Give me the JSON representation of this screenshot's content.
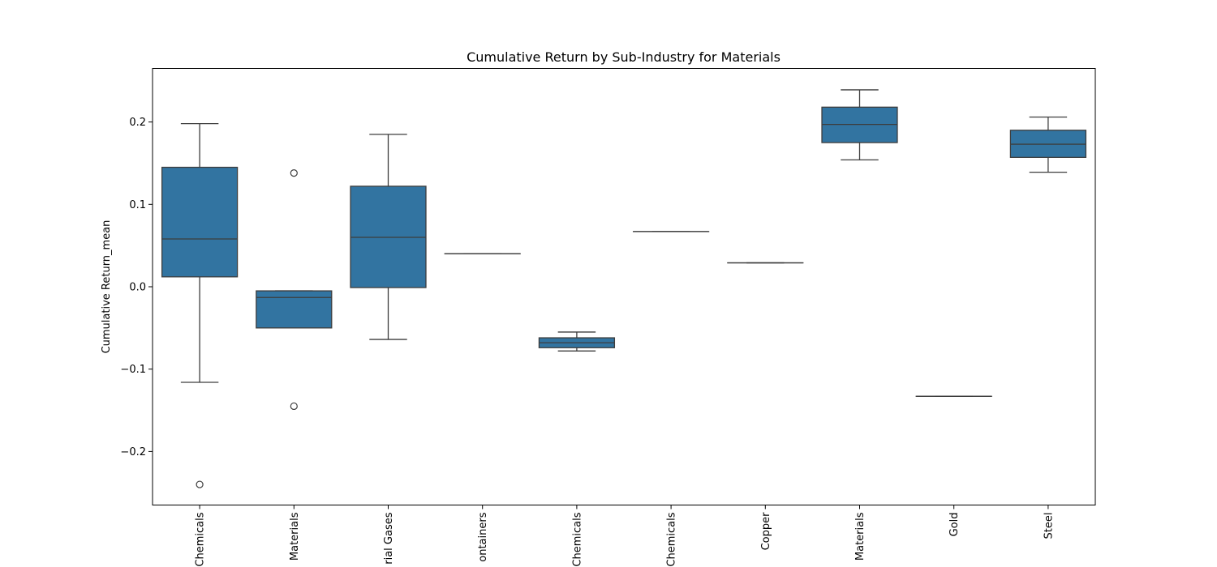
{
  "chart_data": {
    "type": "box",
    "title": "Cumulative Return by Sub-Industry for Materials",
    "xlabel": "",
    "ylabel": "Cumulative Return_mean",
    "ylim": [
      -0.265,
      0.265
    ],
    "yticks": [
      -0.2,
      -0.1,
      0.0,
      0.1,
      0.2
    ],
    "ytick_labels": [
      "−0.2",
      "−0.1",
      "0.0",
      "0.1",
      "0.2"
    ],
    "box_color": "#3274a1",
    "edge_color": "#3d3d3d",
    "categories": [
      {
        "label": "Chemicals",
        "whisker_low": -0.116,
        "q1": 0.012,
        "median": 0.058,
        "q3": 0.145,
        "whisker_high": 0.198,
        "outliers": [
          -0.24
        ]
      },
      {
        "label": "Materials",
        "whisker_low": -0.05,
        "q1": -0.05,
        "median": -0.013,
        "q3": -0.005,
        "whisker_high": -0.005,
        "outliers": [
          0.138,
          -0.145
        ]
      },
      {
        "label": "rial Gases",
        "whisker_low": -0.064,
        "q1": -0.001,
        "median": 0.06,
        "q3": 0.122,
        "whisker_high": 0.185,
        "outliers": []
      },
      {
        "label": "ontainers",
        "whisker_low": 0.04,
        "q1": 0.04,
        "median": 0.04,
        "q3": 0.04,
        "whisker_high": 0.04,
        "outliers": []
      },
      {
        "label": "Chemicals",
        "whisker_low": -0.078,
        "q1": -0.074,
        "median": -0.068,
        "q3": -0.062,
        "whisker_high": -0.055,
        "outliers": []
      },
      {
        "label": "Chemicals",
        "whisker_low": 0.067,
        "q1": 0.067,
        "median": 0.067,
        "q3": 0.067,
        "whisker_high": 0.067,
        "outliers": []
      },
      {
        "label": "Copper",
        "whisker_low": 0.029,
        "q1": 0.029,
        "median": 0.029,
        "q3": 0.029,
        "whisker_high": 0.029,
        "outliers": []
      },
      {
        "label": "Materials",
        "whisker_low": 0.154,
        "q1": 0.175,
        "median": 0.197,
        "q3": 0.218,
        "whisker_high": 0.239,
        "outliers": []
      },
      {
        "label": "Gold",
        "whisker_low": -0.133,
        "q1": -0.133,
        "median": -0.133,
        "q3": -0.133,
        "whisker_high": -0.133,
        "outliers": []
      },
      {
        "label": "Steel",
        "whisker_low": 0.139,
        "q1": 0.157,
        "median": 0.173,
        "q3": 0.19,
        "whisker_high": 0.206,
        "outliers": []
      }
    ]
  }
}
